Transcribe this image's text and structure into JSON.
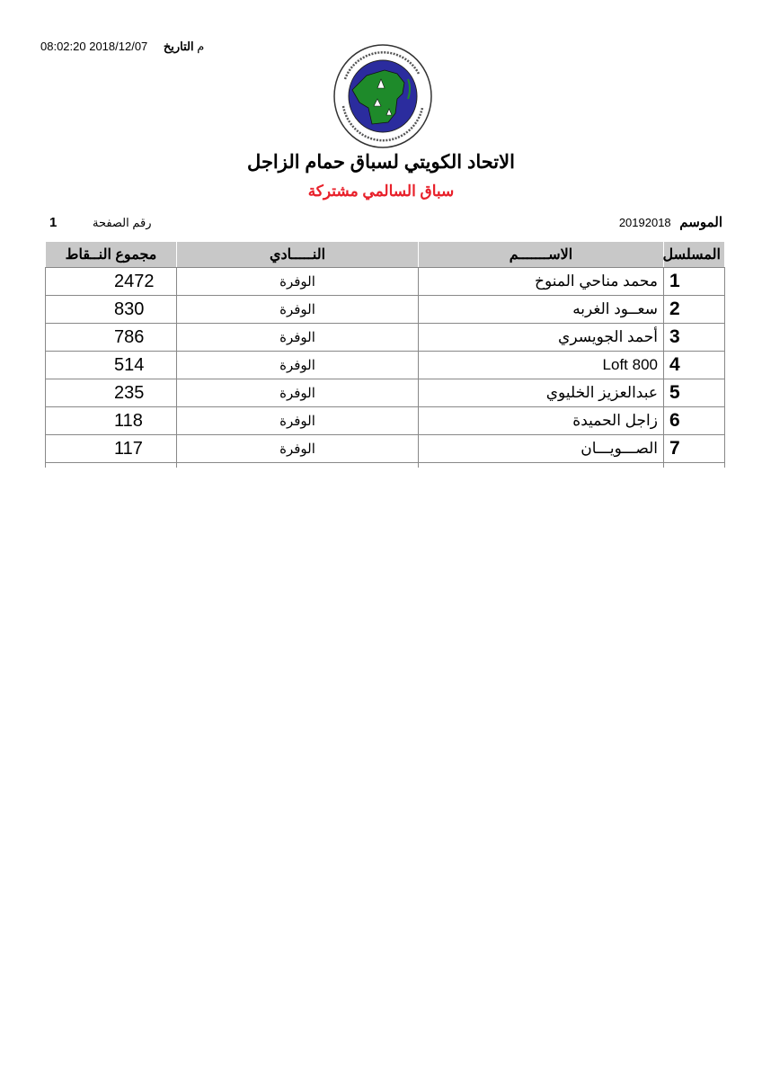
{
  "header": {
    "date_label": "التاريخ",
    "date_value": "08:02:20 2018/12/07 م",
    "logo": {
      "text_ar": "الاتحاد الكويتي لسباق حمام الزاجل",
      "text_en": "KUWAIT FEDRATION FOR RACING PIGEON",
      "colors": {
        "ring": "#ffffff",
        "sea": "#2b2c9e",
        "land": "#1e8a2a"
      }
    },
    "title": "الاتحاد الكويتي لسباق حمام الزاجل",
    "subtitle": "سباق السالمي مشتركة",
    "subtitle_color": "#e8202a",
    "season_label": "الموسم",
    "season_value": "20192018",
    "page_label": "رقم الصفحة",
    "page_value": "1"
  },
  "table": {
    "columns": [
      "المسلسل",
      "الاســـــــم",
      "النـــــادي",
      "مجموع النــقاط"
    ],
    "rows": [
      {
        "serial": "1",
        "name": "محمد مناحي المنوخ",
        "club": "الوفرة",
        "points": "2472"
      },
      {
        "serial": "2",
        "name": "سعــود الغربه",
        "club": "الوفرة",
        "points": "830"
      },
      {
        "serial": "3",
        "name": "أحمد الجويسري",
        "club": "الوفرة",
        "points": "786"
      },
      {
        "serial": "4",
        "name": "Loft 800",
        "club": "الوفرة",
        "points": "514"
      },
      {
        "serial": "5",
        "name": "عبدالعزيز الخليوي",
        "club": "الوفرة",
        "points": "235"
      },
      {
        "serial": "6",
        "name": "زاجل الحميدة",
        "club": "الوفرة",
        "points": "118"
      },
      {
        "serial": "7",
        "name": "الصـــويـــان",
        "club": "الوفرة",
        "points": "117"
      }
    ]
  }
}
